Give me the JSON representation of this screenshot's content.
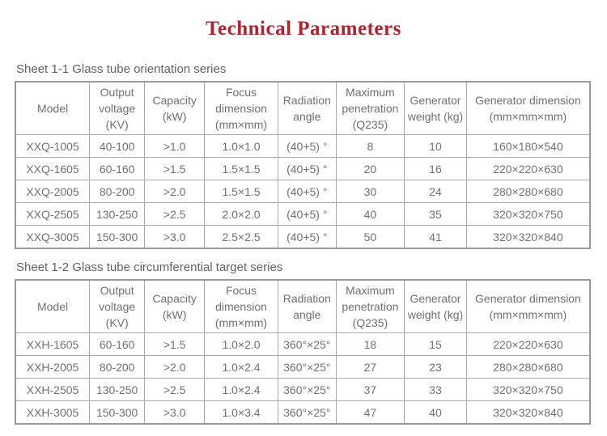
{
  "page": {
    "title": "Technical Parameters"
  },
  "colors": {
    "title_accent": "#b22330",
    "table_text": "#6f7072",
    "border": "#9a9a9a"
  },
  "tables": [
    {
      "caption": "Sheet 1-1 Glass tube orientation series",
      "headers": [
        "Model",
        "Output voltage (KV)",
        "Capacity (kW)",
        "Focus dimension (mm×mm)",
        "Radiation angle",
        "Maximum penetration (Q235)",
        "Generator weight (kg)",
        "Generator dimension (mm×mm×mm)"
      ],
      "rows": [
        [
          "XXQ-1005",
          "40-100",
          ">1.0",
          "1.0×1.0",
          "(40+5) °",
          "8",
          "10",
          "160×180×540"
        ],
        [
          "XXQ-1605",
          "60-160",
          ">1.5",
          "1.5×1.5",
          "(40+5) °",
          "20",
          "16",
          "220×220×630"
        ],
        [
          "XXQ-2005",
          "80-200",
          ">2.0",
          "1.5×1.5",
          "(40+5) °",
          "30",
          "24",
          "280×280×680"
        ],
        [
          "XXQ-2505",
          "130-250",
          ">2.5",
          "2.0×2.0",
          "(40+5) °",
          "40",
          "35",
          "320×320×750"
        ],
        [
          "XXQ-3005",
          "150-300",
          ">3.0",
          "2.5×2.5",
          "(40+5) °",
          "50",
          "41",
          "320×320×840"
        ]
      ]
    },
    {
      "caption": "Sheet 1-2 Glass tube circumferential target series",
      "headers": [
        "Model",
        "Output voltage (KV)",
        "Capacity (kW)",
        "Focus dimension (mm×mm)",
        "Radiation angle",
        "Maximum penetration (Q235)",
        "Generator weight (kg)",
        "Generator dimension (mm×mm×mm)"
      ],
      "rows": [
        [
          "XXH-1605",
          "60-160",
          ">1.5",
          "1.0×2.0",
          "360°×25°",
          "18",
          "15",
          "220×220×630"
        ],
        [
          "XXH-2005",
          "80-200",
          ">2.0",
          "1.0×2.4",
          "360°×25°",
          "27",
          "23",
          "280×280×680"
        ],
        [
          "XXH-2505",
          "130-250",
          ">2.5",
          "1.0×2.4",
          "360°×25°",
          "37",
          "33",
          "320×320×750"
        ],
        [
          "XXH-3005",
          "150-300",
          ">3.0",
          "1.0×3.4",
          "360°×25°",
          "47",
          "40",
          "320×320×840"
        ]
      ]
    }
  ]
}
